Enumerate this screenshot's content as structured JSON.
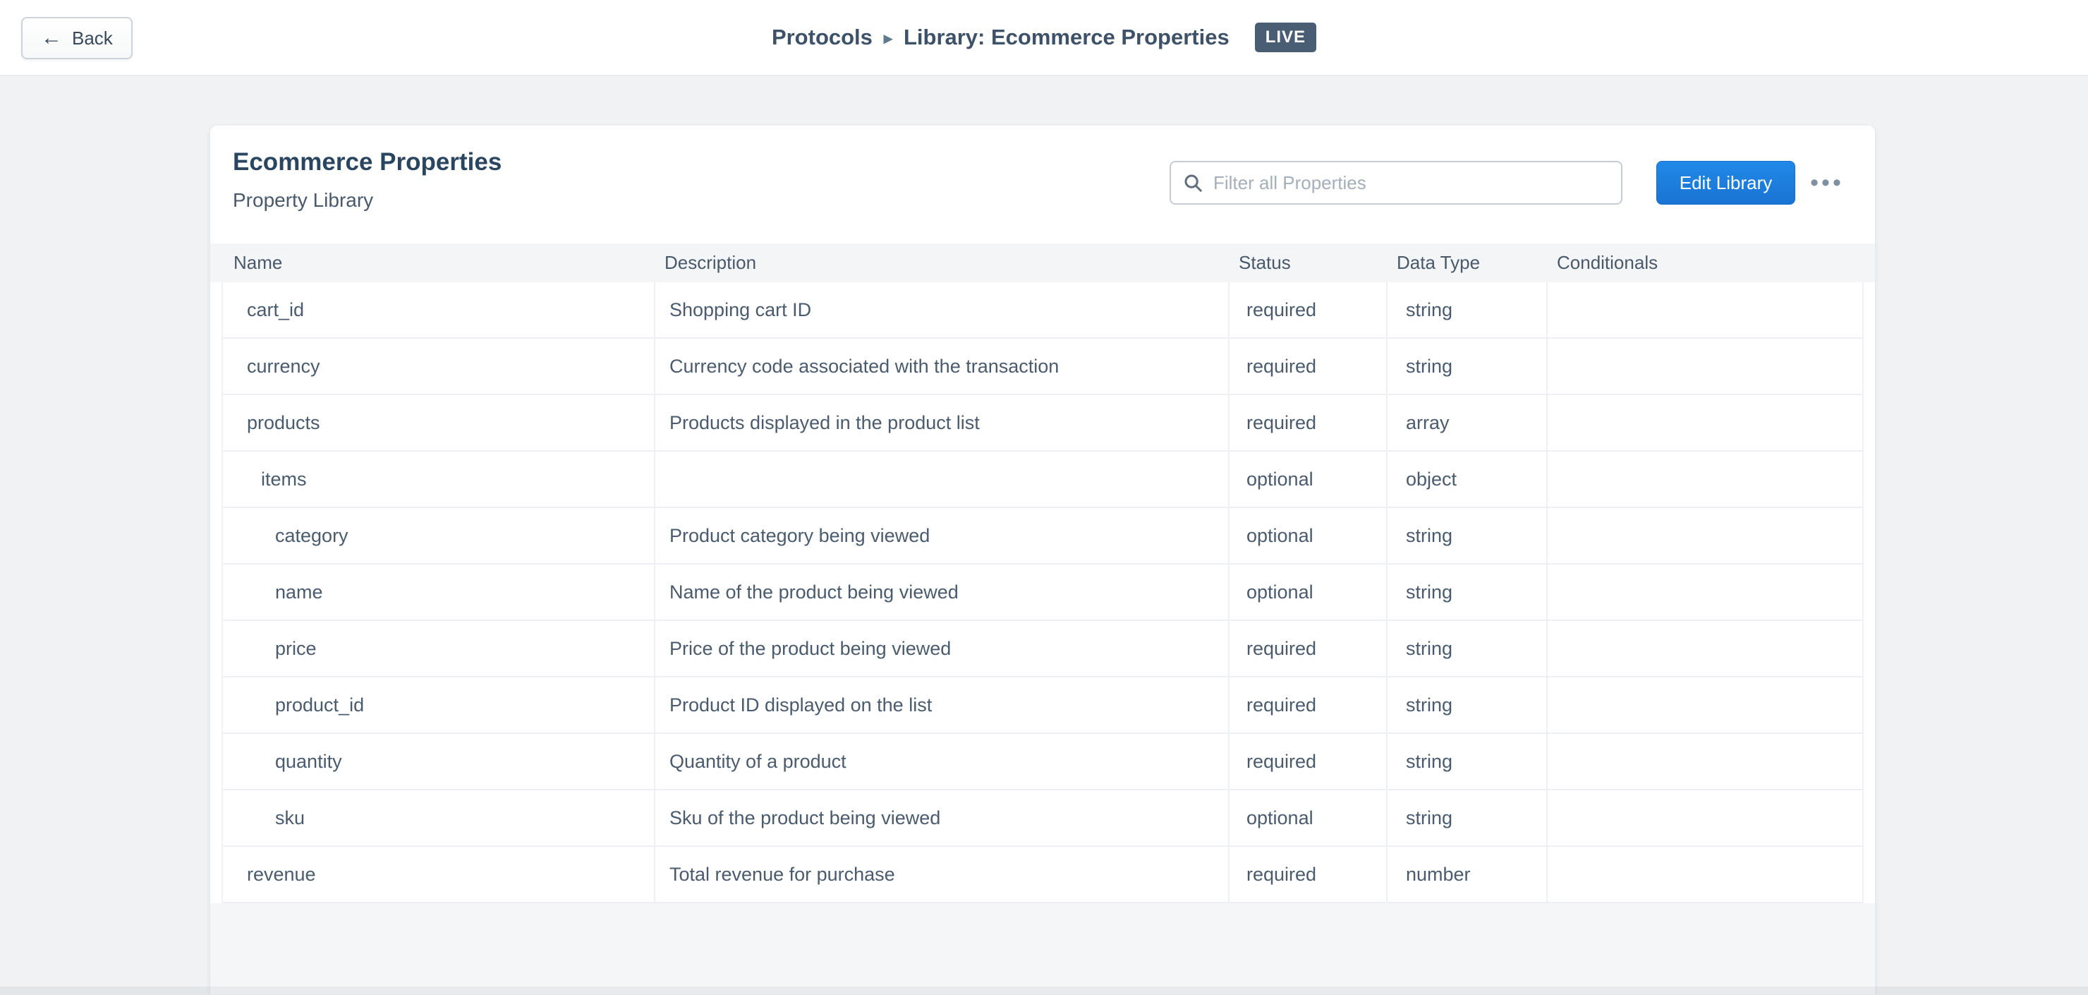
{
  "topbar": {
    "back_label": "Back",
    "back_arrow_icon": "←",
    "breadcrumb": {
      "root": "Protocols",
      "separator_icon": "▸",
      "current": "Library: Ecommerce Properties"
    },
    "live_badge": "LIVE"
  },
  "card": {
    "title": "Ecommerce Properties",
    "subtitle": "Property Library",
    "filter_placeholder": "Filter all Properties",
    "filter_value": "",
    "edit_button_label": "Edit Library",
    "overflow_icon": "•••"
  },
  "table": {
    "columns": [
      "Name",
      "Description",
      "Status",
      "Data Type",
      "Conditionals"
    ],
    "rows": [
      {
        "name": "cart_id",
        "indent": 0,
        "description": "Shopping cart ID",
        "status": "required",
        "data_type": "string",
        "conditionals": ""
      },
      {
        "name": "currency",
        "indent": 0,
        "description": "Currency code associated with the transaction",
        "status": "required",
        "data_type": "string",
        "conditionals": ""
      },
      {
        "name": "products",
        "indent": 0,
        "description": "Products displayed in the product list",
        "status": "required",
        "data_type": "array",
        "conditionals": ""
      },
      {
        "name": "items",
        "indent": 1,
        "description": "",
        "status": "optional",
        "data_type": "object",
        "conditionals": ""
      },
      {
        "name": "category",
        "indent": 2,
        "description": "Product category being viewed",
        "status": "optional",
        "data_type": "string",
        "conditionals": ""
      },
      {
        "name": "name",
        "indent": 2,
        "description": "Name of the product being viewed",
        "status": "optional",
        "data_type": "string",
        "conditionals": ""
      },
      {
        "name": "price",
        "indent": 2,
        "description": "Price of the product being viewed",
        "status": "required",
        "data_type": "string",
        "conditionals": ""
      },
      {
        "name": "product_id",
        "indent": 2,
        "description": "Product ID displayed on the list",
        "status": "required",
        "data_type": "string",
        "conditionals": ""
      },
      {
        "name": "quantity",
        "indent": 2,
        "description": "Quantity of a product",
        "status": "required",
        "data_type": "string",
        "conditionals": ""
      },
      {
        "name": "sku",
        "indent": 2,
        "description": "Sku of the product being viewed",
        "status": "optional",
        "data_type": "string",
        "conditionals": ""
      },
      {
        "name": "revenue",
        "indent": 0,
        "description": "Total revenue for purchase",
        "status": "required",
        "data_type": "number",
        "conditionals": ""
      }
    ]
  },
  "colors": {
    "accent_blue": "#1d7ed9",
    "badge_bg": "#4a5e73",
    "text_dark": "#29455f",
    "text_body": "#4a5b6e",
    "page_bg": "#f0f2f4",
    "table_header_bg": "#f4f5f7",
    "row_border": "#eef0f3"
  }
}
